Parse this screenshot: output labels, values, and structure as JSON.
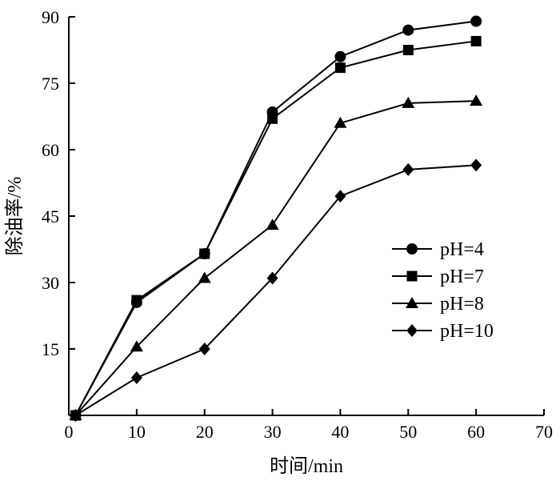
{
  "chart_data": {
    "type": "line",
    "title": "",
    "xlabel": "时间/min",
    "ylabel": "除油率/%",
    "xlim": [
      0,
      70
    ],
    "ylim": [
      0,
      90
    ],
    "xticks": [
      0,
      10,
      20,
      30,
      40,
      50,
      60,
      70
    ],
    "yticks": [
      15,
      30,
      45,
      60,
      75,
      90
    ],
    "grid": false,
    "legend_position": "center-right",
    "x": [
      1,
      10,
      20,
      30,
      40,
      50,
      60
    ],
    "series": [
      {
        "name": "pH=4",
        "marker": "circle",
        "values": [
          0,
          25.5,
          36.5,
          68.5,
          81,
          87,
          89
        ]
      },
      {
        "name": "pH=7",
        "marker": "square",
        "values": [
          0,
          26,
          36.5,
          67,
          78.5,
          82.5,
          84.5
        ]
      },
      {
        "name": "pH=8",
        "marker": "triangle",
        "values": [
          0,
          15.5,
          31,
          43,
          66,
          70.5,
          71
        ]
      },
      {
        "name": "pH=10",
        "marker": "diamond",
        "values": [
          0,
          8.5,
          15,
          31,
          49.5,
          55.5,
          56.5
        ]
      }
    ],
    "colors": {
      "line": "#000000",
      "marker": "#000000"
    }
  }
}
